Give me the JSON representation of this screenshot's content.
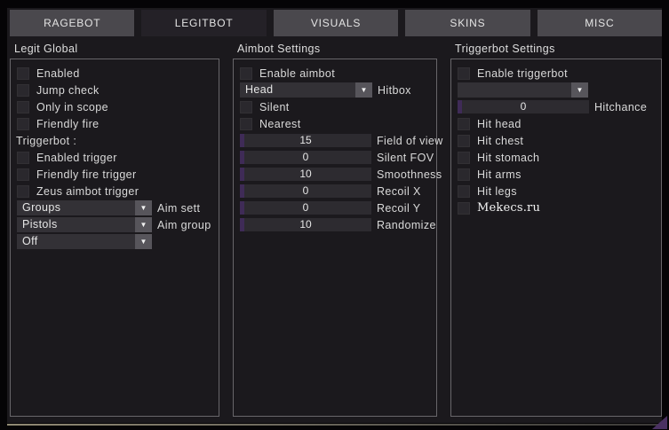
{
  "colors": {
    "accent_purple": "#3f2b57",
    "window_bg": "#1b191d",
    "tab_inactive": "#4a484d",
    "tab_active": "#242127",
    "panel_border": "#68666a"
  },
  "icons": {
    "dropdown_arrow": "▼"
  },
  "tabs": [
    {
      "label": "RAGEBOT",
      "active": false
    },
    {
      "label": "LEGITBOT",
      "active": true
    },
    {
      "label": "VISUALS",
      "active": false
    },
    {
      "label": "SKINS",
      "active": false
    },
    {
      "label": "MISC",
      "active": false
    }
  ],
  "panels": {
    "legit_global": {
      "title": "Legit Global",
      "checkboxes": [
        "Enabled",
        "Jump check",
        "Only in scope",
        "Friendly fire"
      ],
      "subheading": "Triggerbot :",
      "trigger_checkboxes": [
        "Enabled trigger",
        "Friendly fire trigger",
        "Zeus aimbot trigger"
      ],
      "dropdowns": [
        {
          "value": "Groups",
          "label": "Aim sett"
        },
        {
          "value": "Pistols",
          "label": "Aim group"
        },
        {
          "value": "Off",
          "label": ""
        }
      ]
    },
    "aimbot": {
      "title": "Aimbot Settings",
      "enable_checkbox": "Enable aimbot",
      "hitbox_dropdown": {
        "value": "Head",
        "label": "Hitbox"
      },
      "checkboxes": [
        "Silent",
        "Nearest"
      ],
      "sliders": [
        {
          "value": "15",
          "label": "Field of view"
        },
        {
          "value": "0",
          "label": "Silent FOV"
        },
        {
          "value": "10",
          "label": "Smoothness"
        },
        {
          "value": "0",
          "label": "Recoil X"
        },
        {
          "value": "0",
          "label": "Recoil Y"
        },
        {
          "value": "10",
          "label": "Randomize"
        }
      ]
    },
    "triggerbot": {
      "title": "Triggerbot Settings",
      "enable_checkbox": "Enable triggerbot",
      "dropdown": {
        "value": ""
      },
      "slider": {
        "value": "0",
        "label": "Hitchance"
      },
      "checkboxes": [
        "Hit head",
        "Hit chest",
        "Hit stomach",
        "Hit arms",
        "Hit legs"
      ],
      "watermark": "Mekecs.ru"
    }
  }
}
